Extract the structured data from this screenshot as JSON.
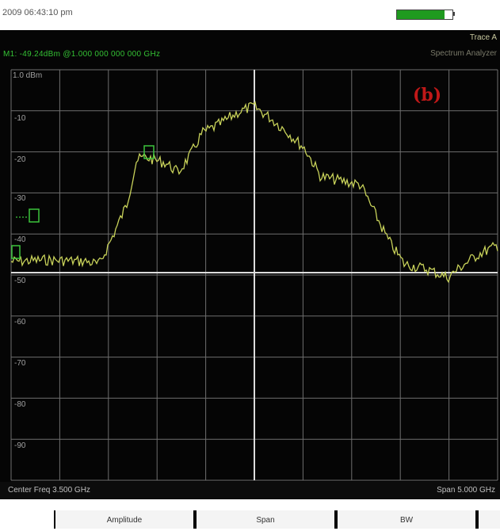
{
  "header": {
    "datetime": "2009 06:43:10 pm",
    "battery_level": 0.85,
    "battery_color": "#1f9a1f"
  },
  "display": {
    "trace_label": "Trace A",
    "mode_label": "Spectrum Analyzer",
    "marker_readout": "M1: -49.24dBm @1.000 000 000 000 GHz",
    "ref_level": "1.0 dBm",
    "y_labels": [
      "-10",
      "-20",
      "-30",
      "-40",
      "-50",
      "-60",
      "-70",
      "-80",
      "-90"
    ],
    "figure_label": "(b)",
    "trace_color": "#c8d25a",
    "grid_color": "#6e6e6e",
    "marker_color": "#3cc43c",
    "figure_label_color": "#c01818"
  },
  "status": {
    "center_freq": "Center Freq 3.500 GHz",
    "span": "Span 5.000 GHz"
  },
  "softkeys": [
    "Amplitude",
    "Span",
    "BW"
  ]
}
